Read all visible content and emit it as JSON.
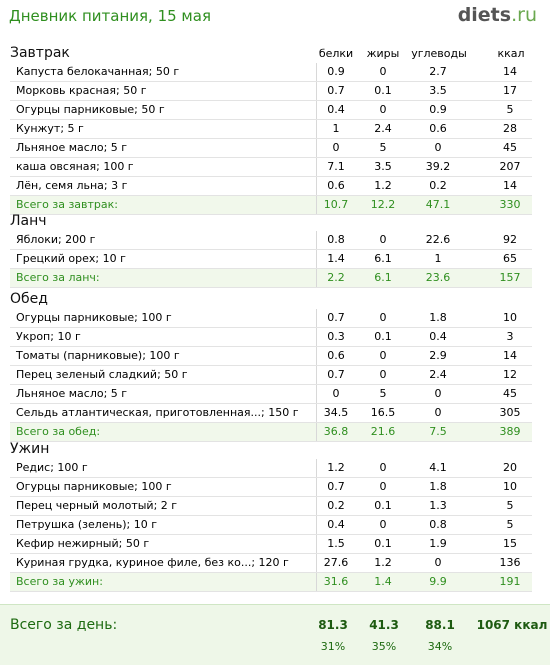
{
  "header": {
    "title": "Дневник питания, 15 мая",
    "logo_main": "diets",
    "logo_tld": ".ru"
  },
  "columns": {
    "protein": "белки",
    "fat": "жиры",
    "carbs": "углеводы",
    "kcal": "ккал"
  },
  "meals": [
    {
      "title": "Завтрак",
      "items": [
        {
          "name": "Капуста белокачанная; 50 г",
          "p": "0.9",
          "f": "0",
          "c": "2.7",
          "k": "14"
        },
        {
          "name": "Морковь красная; 50 г",
          "p": "0.7",
          "f": "0.1",
          "c": "3.5",
          "k": "17"
        },
        {
          "name": "Огурцы парниковые; 50 г",
          "p": "0.4",
          "f": "0",
          "c": "0.9",
          "k": "5"
        },
        {
          "name": "Кунжут; 5 г",
          "p": "1",
          "f": "2.4",
          "c": "0.6",
          "k": "28"
        },
        {
          "name": "Льняное масло; 5 г",
          "p": "0",
          "f": "5",
          "c": "0",
          "k": "45"
        },
        {
          "name": "каша овсяная; 100 г",
          "p": "7.1",
          "f": "3.5",
          "c": "39.2",
          "k": "207"
        },
        {
          "name": "Лён, семя льна; 3 г",
          "p": "0.6",
          "f": "1.2",
          "c": "0.2",
          "k": "14"
        }
      ],
      "total": {
        "name": "Всего за завтрак:",
        "p": "10.7",
        "f": "12.2",
        "c": "47.1",
        "k": "330"
      }
    },
    {
      "title": "Ланч",
      "items": [
        {
          "name": "Яблоки; 200 г",
          "p": "0.8",
          "f": "0",
          "c": "22.6",
          "k": "92"
        },
        {
          "name": "Грецкий орех; 10 г",
          "p": "1.4",
          "f": "6.1",
          "c": "1",
          "k": "65"
        }
      ],
      "total": {
        "name": "Всего за ланч:",
        "p": "2.2",
        "f": "6.1",
        "c": "23.6",
        "k": "157"
      }
    },
    {
      "title": "Обед",
      "items": [
        {
          "name": "Огурцы парниковые; 100 г",
          "p": "0.7",
          "f": "0",
          "c": "1.8",
          "k": "10"
        },
        {
          "name": "Укроп; 10 г",
          "p": "0.3",
          "f": "0.1",
          "c": "0.4",
          "k": "3"
        },
        {
          "name": "Томаты (парниковые); 100 г",
          "p": "0.6",
          "f": "0",
          "c": "2.9",
          "k": "14"
        },
        {
          "name": "Перец зеленый сладкий; 50 г",
          "p": "0.7",
          "f": "0",
          "c": "2.4",
          "k": "12"
        },
        {
          "name": "Льняное масло; 5 г",
          "p": "0",
          "f": "5",
          "c": "0",
          "k": "45"
        },
        {
          "name": "Сельдь атлантическая, приготовленная...; 150 г",
          "p": "34.5",
          "f": "16.5",
          "c": "0",
          "k": "305"
        }
      ],
      "total": {
        "name": "Всего за обед:",
        "p": "36.8",
        "f": "21.6",
        "c": "7.5",
        "k": "389"
      }
    },
    {
      "title": "Ужин",
      "items": [
        {
          "name": "Редис; 100 г",
          "p": "1.2",
          "f": "0",
          "c": "4.1",
          "k": "20"
        },
        {
          "name": "Огурцы парниковые; 100 г",
          "p": "0.7",
          "f": "0",
          "c": "1.8",
          "k": "10"
        },
        {
          "name": "Перец черный молотый; 2 г",
          "p": "0.2",
          "f": "0.1",
          "c": "1.3",
          "k": "5"
        },
        {
          "name": "Петрушка (зелень); 10 г",
          "p": "0.4",
          "f": "0",
          "c": "0.8",
          "k": "5"
        },
        {
          "name": "Кефир нежирный; 50 г",
          "p": "1.5",
          "f": "0.1",
          "c": "1.9",
          "k": "15"
        },
        {
          "name": "Куриная грудка, куриное филе, без ко...; 120 г",
          "p": "27.6",
          "f": "1.2",
          "c": "0",
          "k": "136"
        }
      ],
      "total": {
        "name": "Всего за ужин:",
        "p": "31.6",
        "f": "1.4",
        "c": "9.9",
        "k": "191"
      }
    }
  ],
  "day_total": {
    "label": "Всего за день:",
    "p": "81.3",
    "f": "41.3",
    "c": "88.1",
    "k": "1067 ккал",
    "p_pct": "31%",
    "f_pct": "35%",
    "c_pct": "34%"
  },
  "colors": {
    "accent_green": "#2f8f1f",
    "total_row_bg": "#f1f8eb",
    "day_total_bg": "#eef7e8"
  }
}
